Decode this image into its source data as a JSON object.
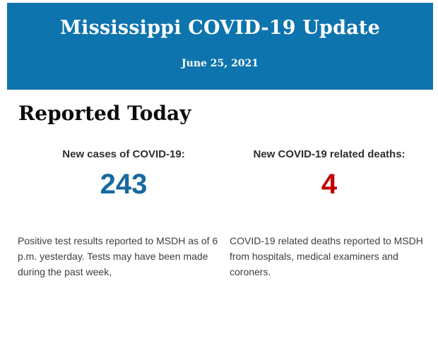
{
  "header": {
    "title": "Mississippi COVID-19 Update",
    "date": "June 25, 2021",
    "background_color": "#0e74ad",
    "text_color": "#ffffff"
  },
  "main": {
    "section_title": "Reported Today",
    "stats": [
      {
        "label": "New cases of COVID-19:",
        "value": "243",
        "value_color": "#17699e",
        "description": "Positive test results reported to MSDH as of 6 p.m. yesterday. Tests may have been made during the past week,"
      },
      {
        "label": "New COVID-19 related deaths:",
        "value": "4",
        "value_color": "#c00000",
        "description": "COVID-19 related deaths reported to MSDH from hospitals, medical examiners and coroners."
      }
    ]
  }
}
